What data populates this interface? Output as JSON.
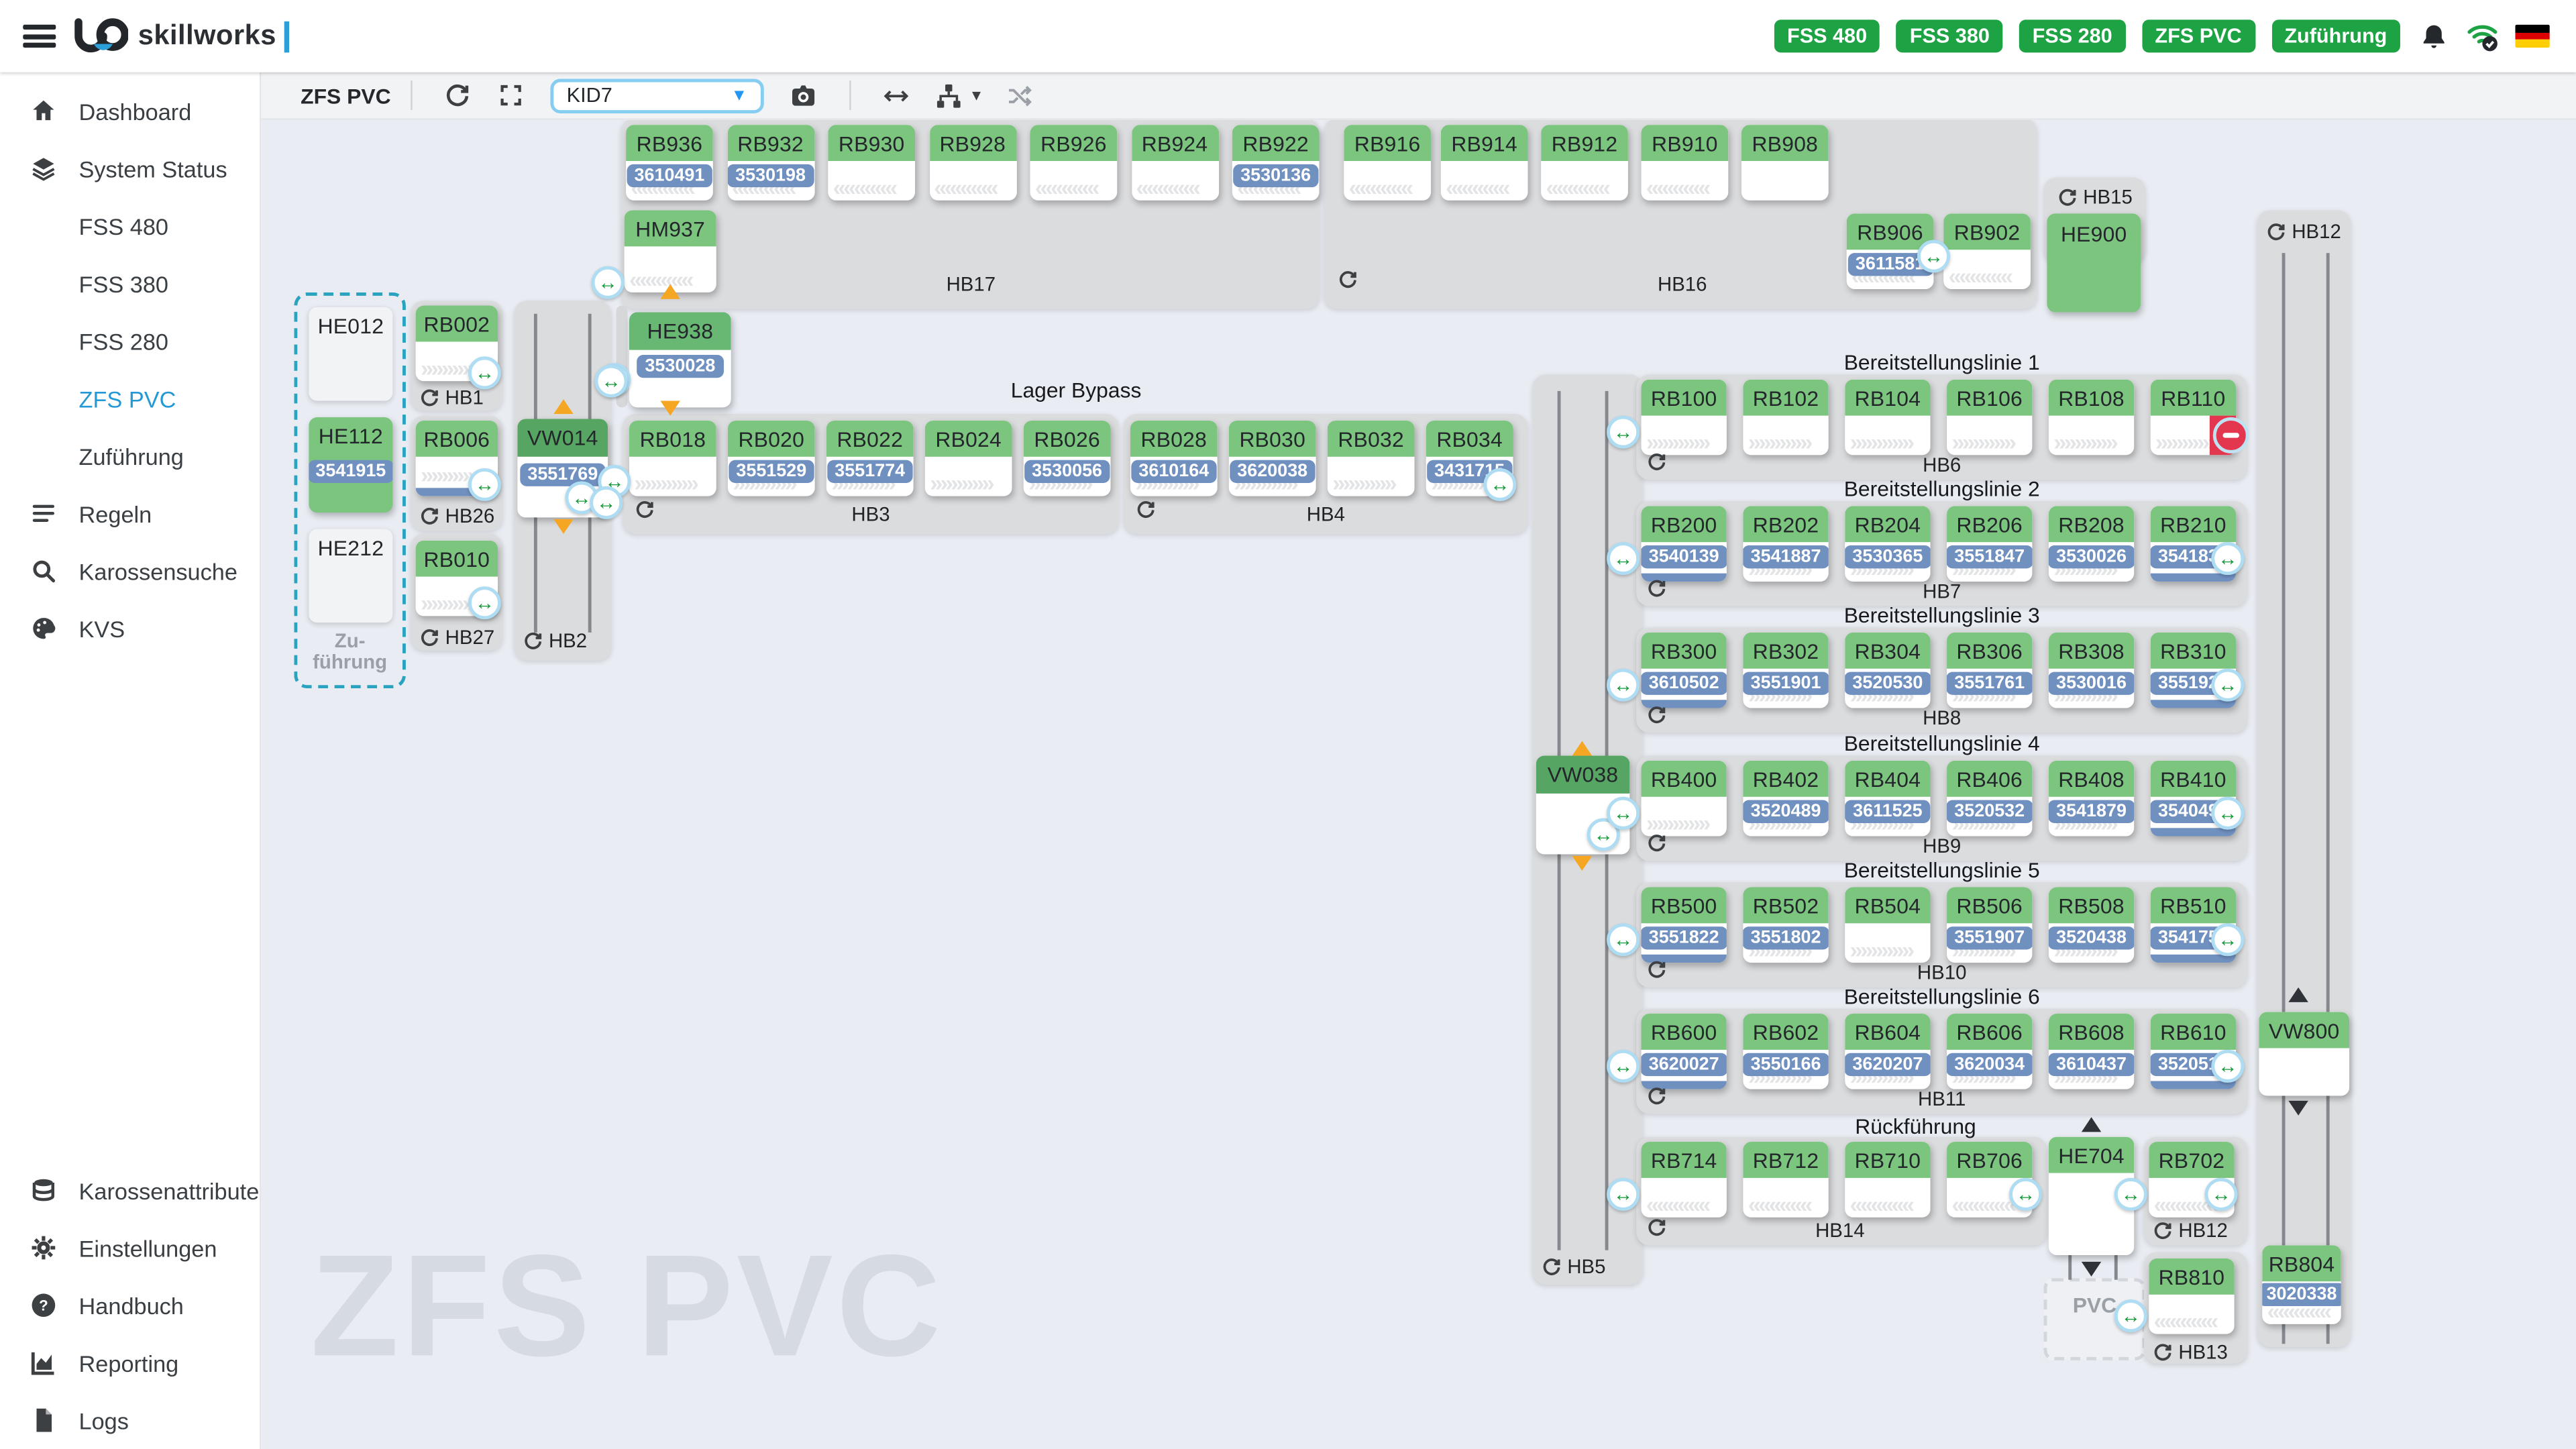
{
  "header": {
    "brand": "skillworks",
    "badges": [
      "FSS 480",
      "FSS 380",
      "FSS 280",
      "ZFS PVC",
      "Zuführung"
    ],
    "icons": [
      "bell-icon",
      "wifi-check-icon",
      "german-flag-icon"
    ]
  },
  "sidebar": {
    "items": [
      {
        "label": "Dashboard",
        "icon": "home"
      },
      {
        "label": "System Status",
        "icon": "layers"
      },
      {
        "label": "FSS 480",
        "sub": true
      },
      {
        "label": "FSS 380",
        "sub": true
      },
      {
        "label": "FSS 280",
        "sub": true
      },
      {
        "label": "ZFS PVC",
        "sub": true,
        "active": true
      },
      {
        "label": "Zuführung",
        "sub": true
      },
      {
        "label": "Regeln",
        "icon": "rules"
      },
      {
        "label": "Karossensuche",
        "icon": "search"
      },
      {
        "label": "KVS",
        "icon": "palette"
      }
    ],
    "bottom_items": [
      {
        "label": "Karossenattribute",
        "icon": "database"
      },
      {
        "label": "Einstellungen",
        "icon": "gear"
      },
      {
        "label": "Handbuch",
        "icon": "help"
      },
      {
        "label": "Reporting",
        "icon": "chart"
      },
      {
        "label": "Logs",
        "icon": "file"
      }
    ]
  },
  "toolbar": {
    "title": "ZFS PVC",
    "kid_value": "KID7"
  },
  "watermark": "ZFS PVC",
  "colors": {
    "accent_blue": "#2499d6",
    "badge_green": "#1ea344",
    "block_green": "#7cc57f",
    "block_green_dark": "#57a562",
    "carrier_badge_blue": "#7090c0",
    "blocked_red": "#e2374e",
    "flow_arrow_orange": "#f5a623"
  },
  "diagram": {
    "hb17": {
      "label": "HB17",
      "blocks": [
        {
          "id": "RB936",
          "badge": "3610491",
          "chev": "left"
        },
        {
          "id": "RB932",
          "badge": "3530198",
          "chev": "left"
        },
        {
          "id": "RB930",
          "chev": "left"
        },
        {
          "id": "RB928",
          "chev": "left"
        },
        {
          "id": "RB926",
          "chev": "left"
        },
        {
          "id": "RB924",
          "chev": "left"
        },
        {
          "id": "RB922",
          "badge": "3530136",
          "chev": "left"
        }
      ],
      "extra": {
        "id": "HM937",
        "chev": "left"
      }
    },
    "hb16": {
      "label": "HB16",
      "row1": [
        {
          "id": "RB916",
          "chev": "left"
        },
        {
          "id": "RB914",
          "chev": "left"
        },
        {
          "id": "RB912",
          "chev": "left"
        },
        {
          "id": "RB910",
          "chev": "left"
        },
        {
          "id": "RB908"
        }
      ],
      "row2": [
        {
          "id": "RB906",
          "badge": "3611581",
          "chev": "left"
        },
        {
          "id": "RB902",
          "chev": "left"
        }
      ]
    },
    "hb15": {
      "label": "HB15",
      "block": {
        "id": "HE900",
        "type": "green"
      }
    },
    "lane12": {
      "label": "HB12",
      "vw": {
        "id": "VW800"
      },
      "rb": {
        "id": "RB804",
        "badge": "3020338",
        "chev": "left"
      }
    },
    "feed": {
      "label_lines": [
        "Zu-",
        "führung"
      ],
      "blocks": [
        {
          "id": "HE012",
          "type": "ghost"
        },
        {
          "id": "HE112",
          "type": "green",
          "badge": "3541915"
        },
        {
          "id": "HE212",
          "type": "ghost"
        }
      ]
    },
    "hb1": {
      "label": "HB1",
      "block": {
        "id": "RB002",
        "chev": "right"
      }
    },
    "hb26": {
      "label": "HB26",
      "block": {
        "id": "RB006",
        "chev": "right",
        "strip": true
      }
    },
    "hb27": {
      "label": "HB27",
      "block": {
        "id": "RB010",
        "chev": "right"
      }
    },
    "hb2": {
      "label": "HB2",
      "vw": {
        "id": "VW014",
        "badge": "3551769",
        "dark": true
      }
    },
    "he938": {
      "id": "HE938",
      "badge": "3530028",
      "mid": true
    },
    "bypass_title": "Lager Bypass",
    "hb3": {
      "label": "HB3",
      "blocks": [
        {
          "id": "RB018",
          "chev": "right"
        },
        {
          "id": "RB020",
          "badge": "3551529",
          "chev": "right"
        },
        {
          "id": "RB022",
          "badge": "3551774",
          "chev": "right"
        },
        {
          "id": "RB024",
          "chev": "right"
        },
        {
          "id": "RB026",
          "badge": "3530056",
          "chev": "right"
        }
      ]
    },
    "hb4": {
      "label": "HB4",
      "blocks": [
        {
          "id": "RB028",
          "badge": "3610164",
          "chev": "right"
        },
        {
          "id": "RB030",
          "badge": "3620038",
          "chev": "right"
        },
        {
          "id": "RB032",
          "chev": "right"
        },
        {
          "id": "RB034",
          "badge": "3431715",
          "chev": "right"
        }
      ]
    },
    "hb5": {
      "label": "HB5",
      "vw": {
        "id": "VW038",
        "dark": true
      }
    },
    "lines": [
      {
        "title": "Bereitstellungslinie 1",
        "label": "HB6",
        "blocks": [
          {
            "id": "RB100",
            "chev": "right"
          },
          {
            "id": "RB102",
            "chev": "right"
          },
          {
            "id": "RB104",
            "chev": "right"
          },
          {
            "id": "RB106",
            "chev": "right"
          },
          {
            "id": "RB108",
            "chev": "right"
          },
          {
            "id": "RB110",
            "chev": "right",
            "blocked": true
          }
        ]
      },
      {
        "title": "Bereitstellungslinie 2",
        "label": "HB7",
        "blocks": [
          {
            "id": "RB200",
            "badge": "3540139",
            "chev": "right",
            "strip": true
          },
          {
            "id": "RB202",
            "badge": "3541887",
            "chev": "right"
          },
          {
            "id": "RB204",
            "badge": "3530365",
            "chev": "right"
          },
          {
            "id": "RB206",
            "badge": "3551847",
            "chev": "right"
          },
          {
            "id": "RB208",
            "badge": "3530026",
            "chev": "right"
          },
          {
            "id": "RB210",
            "badge": "3541832",
            "chev": "right",
            "strip": true
          }
        ]
      },
      {
        "title": "Bereitstellungslinie 3",
        "label": "HB8",
        "blocks": [
          {
            "id": "RB300",
            "badge": "3610502",
            "chev": "right",
            "strip": true
          },
          {
            "id": "RB302",
            "badge": "3551901",
            "chev": "right"
          },
          {
            "id": "RB304",
            "badge": "3520530",
            "chev": "right"
          },
          {
            "id": "RB306",
            "badge": "3551761",
            "chev": "right"
          },
          {
            "id": "RB308",
            "badge": "3530016",
            "chev": "right"
          },
          {
            "id": "RB310",
            "badge": "3551928",
            "chev": "right",
            "strip": true
          }
        ]
      },
      {
        "title": "Bereitstellungslinie 4",
        "label": "HB9",
        "blocks": [
          {
            "id": "RB400",
            "chev": "right"
          },
          {
            "id": "RB402",
            "badge": "3520489",
            "chev": "right"
          },
          {
            "id": "RB404",
            "badge": "3611525",
            "chev": "right"
          },
          {
            "id": "RB406",
            "badge": "3520532",
            "chev": "right"
          },
          {
            "id": "RB408",
            "badge": "3541879",
            "chev": "right"
          },
          {
            "id": "RB410",
            "badge": "3540492",
            "chev": "right",
            "strip": true
          }
        ]
      },
      {
        "title": "Bereitstellungslinie 5",
        "label": "HB10",
        "blocks": [
          {
            "id": "RB500",
            "badge": "3551822",
            "chev": "right",
            "strip": true
          },
          {
            "id": "RB502",
            "badge": "3551802",
            "chev": "right"
          },
          {
            "id": "RB504",
            "chev": "right"
          },
          {
            "id": "RB506",
            "badge": "3551907",
            "chev": "right"
          },
          {
            "id": "RB508",
            "badge": "3520438",
            "chev": "right"
          },
          {
            "id": "RB510",
            "badge": "3541754",
            "chev": "right",
            "strip": true
          }
        ]
      },
      {
        "title": "Bereitstellungslinie 6",
        "label": "HB11",
        "blocks": [
          {
            "id": "RB600",
            "badge": "3620027",
            "chev": "right",
            "strip": true
          },
          {
            "id": "RB602",
            "badge": "3550166",
            "chev": "right"
          },
          {
            "id": "RB604",
            "badge": "3620207",
            "chev": "right"
          },
          {
            "id": "RB606",
            "badge": "3620034",
            "chev": "right"
          },
          {
            "id": "RB608",
            "badge": "3610437",
            "chev": "right"
          },
          {
            "id": "RB610",
            "badge": "3520515",
            "chev": "right",
            "strip": true
          }
        ]
      }
    ],
    "rueck_title": "Rückführung",
    "hb14": {
      "label": "HB14",
      "blocks": [
        {
          "id": "RB714",
          "chev": "left"
        },
        {
          "id": "RB712",
          "chev": "left"
        },
        {
          "id": "RB710",
          "chev": "left"
        },
        {
          "id": "RB706",
          "chev": "left"
        }
      ]
    },
    "he704": {
      "id": "HE704"
    },
    "pvc_label": "PVC",
    "hb12s": {
      "label": "HB12",
      "block": {
        "id": "RB702",
        "chev": "left"
      }
    },
    "hb13": {
      "label": "HB13",
      "block": {
        "id": "RB810",
        "chev": "left"
      }
    }
  }
}
